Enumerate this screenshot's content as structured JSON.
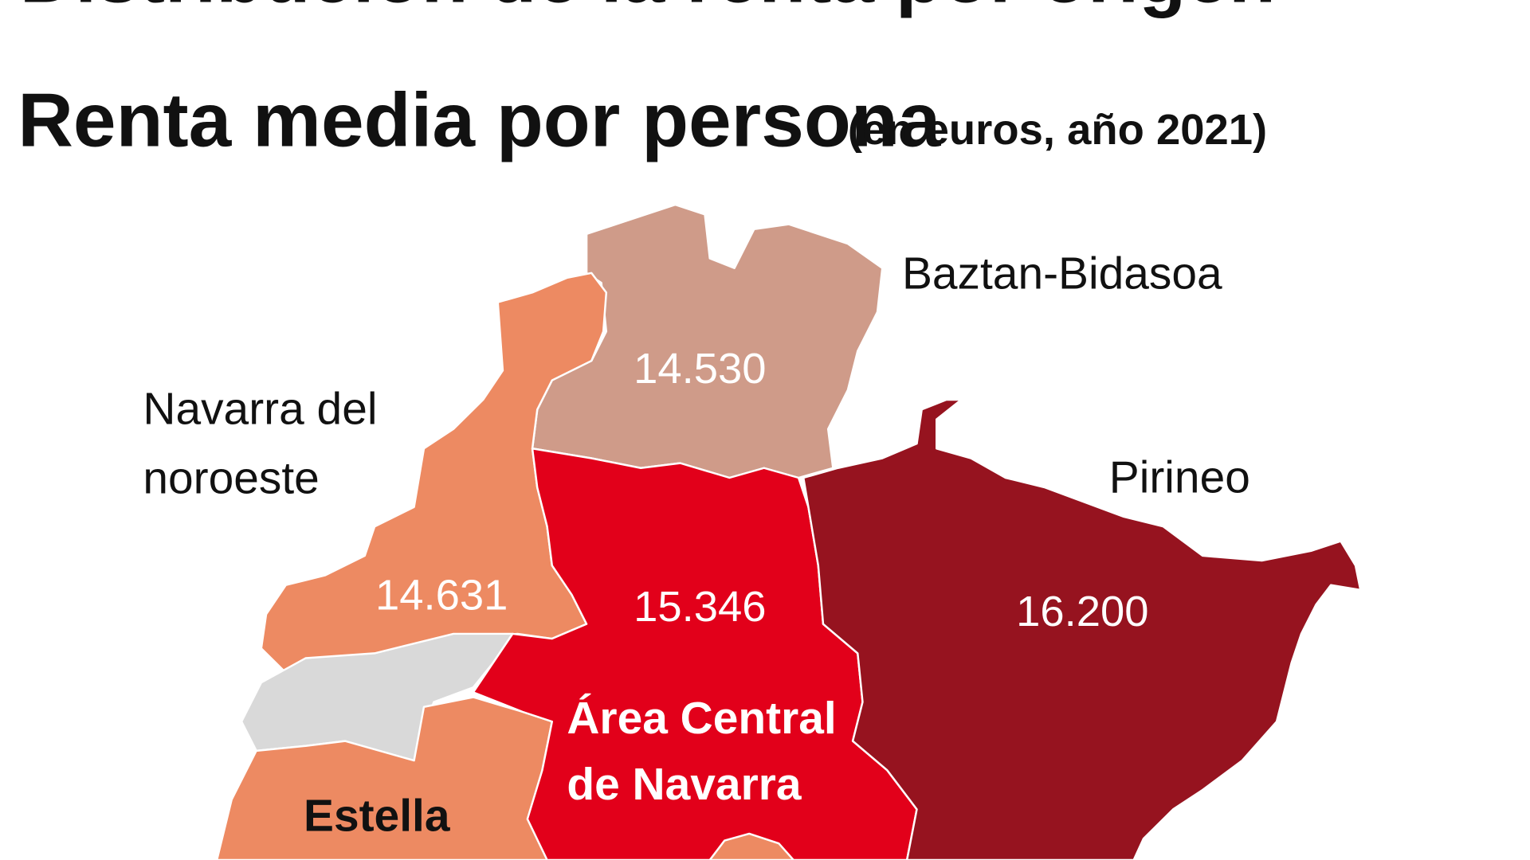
{
  "title": "Distribución de la renta por origen",
  "subtitle": "Renta media por persona",
  "unit": "(en euros, año 2021)",
  "regions": [
    {
      "name": [
        "Baztan-Bidasoa"
      ],
      "value": "14.530",
      "color": "#cf9b89"
    },
    {
      "name": [
        "Navarra del",
        "noroeste"
      ],
      "value": "14.631",
      "color": "#ed8a62"
    },
    {
      "name": [
        "Área Central",
        "de Navarra"
      ],
      "value": "15.346",
      "color": "#e2001a"
    },
    {
      "name": [
        "Pirineo"
      ],
      "value": "16.200",
      "color": "#96131f"
    },
    {
      "name": [
        "Estella"
      ],
      "color": "#ed8a62"
    }
  ],
  "no_data_color": "#d9d9d9"
}
